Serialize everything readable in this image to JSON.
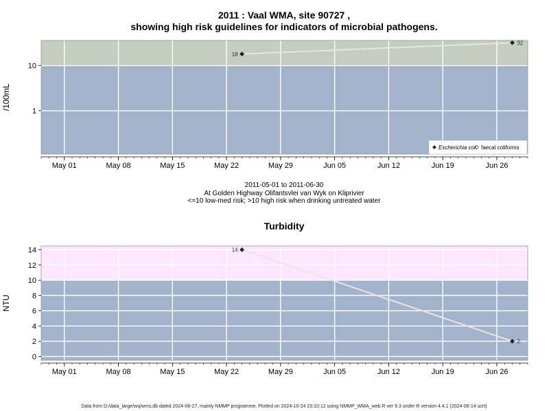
{
  "page": {
    "title_line1": "2011 : Vaal WMA, site 90727 ,",
    "title_line2": "showing high risk guidelines for indicators of microbial pathogens.",
    "date_range": "2011-05-01 to 2011-06-30",
    "location": "At Golden Highway Olifantsvlei van Wyk on Kliprivier",
    "risk_note": "<=10 low-med risk; >10 high risk when drinking untreated water",
    "footer": "Data from D:/data_large/wq/wms.db dated 2024-08-27, mainly NMMP programme. Plotted on 2024-10-24 23:10:12 using NMMP_WMA_web.R ver 9.3 under R version 4.4.1 (2024-06-14 ucrt)"
  },
  "chart_data": [
    {
      "type": "line",
      "title": "",
      "ylabel": "/100mL",
      "xlabel": "",
      "yscale": "log",
      "xlim": [
        "2011-04-28",
        "2011-06-30"
      ],
      "ylim": [
        0.11,
        36
      ],
      "y_ticks": [
        1,
        10
      ],
      "y_tick_labels": [
        "1",
        "10"
      ],
      "x_ticks": [
        "2011-05-01",
        "2011-05-08",
        "2011-05-15",
        "2011-05-22",
        "2011-05-29",
        "2011-06-05",
        "2011-06-12",
        "2011-06-19",
        "2011-06-26"
      ],
      "x_tick_labels": [
        "May 01",
        "May 08",
        "May 15",
        "May 22",
        "May 29",
        "Jun 05",
        "Jun 12",
        "Jun 19",
        "Jun 26"
      ],
      "threshold": 10,
      "band_colors": {
        "below": "#a3b3cc",
        "above": "#c4cdc0"
      },
      "grid": true,
      "legend_position": "bottom-right",
      "legend": [
        {
          "label": "Escherichia coli",
          "marker": "filled-diamond"
        },
        {
          "label": "faecal coliforms",
          "marker": "open-diamond"
        }
      ],
      "series": [
        {
          "name": "Escherichia coli",
          "x": [
            "2011-05-24",
            "2011-06-28"
          ],
          "y": [
            18,
            32
          ],
          "labels": [
            "18",
            "32"
          ]
        }
      ]
    },
    {
      "type": "line",
      "title": "Turbidity",
      "ylabel": "NTU",
      "xlabel": "",
      "yscale": "linear",
      "xlim": [
        "2011-04-28",
        "2011-06-30"
      ],
      "ylim": [
        -0.5,
        14.5
      ],
      "y_ticks": [
        0,
        2,
        4,
        6,
        8,
        10,
        12,
        14
      ],
      "y_tick_labels": [
        "0",
        "2",
        "4",
        "6",
        "8",
        "10",
        "12",
        "14"
      ],
      "x_ticks": [
        "2011-05-01",
        "2011-05-08",
        "2011-05-15",
        "2011-05-22",
        "2011-05-29",
        "2011-06-05",
        "2011-06-12",
        "2011-06-19",
        "2011-06-26"
      ],
      "x_tick_labels": [
        "May 01",
        "May 08",
        "May 15",
        "May 22",
        "May 29",
        "Jun 05",
        "Jun 12",
        "Jun 19",
        "Jun 26"
      ],
      "threshold": 10,
      "band_colors": {
        "below": "#a3b3cc",
        "above": "#ffe6ff"
      },
      "grid": true,
      "series": [
        {
          "name": "",
          "x": [
            "2011-05-24",
            "2011-06-28"
          ],
          "y": [
            14,
            2
          ],
          "labels": [
            "14",
            "2"
          ]
        }
      ]
    }
  ]
}
